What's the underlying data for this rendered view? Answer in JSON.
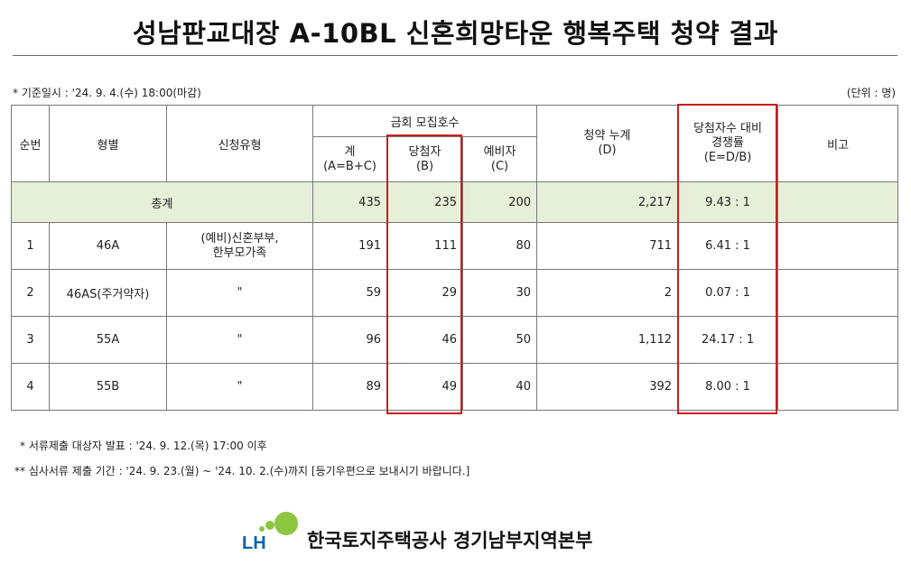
{
  "title": "성남판교대장 A-10BL 신혼희망타운 행복주택 청약 결과",
  "basis_date": "* 기준일시 : '24. 9. 4.(수) 18:00(마감)",
  "unit": "(단위 : 명)",
  "headers": {
    "seq": "순번",
    "type": "형별",
    "apply_type": "신청유형",
    "recruit_group": "금회 모집호수",
    "total": "계",
    "total_formula": "(A=B+C)",
    "winners": "당첨자",
    "winners_code": "(B)",
    "reserve": "예비자",
    "reserve_code": "(C)",
    "cumulative": "청약 누계",
    "cumulative_code": "(D)",
    "ratio_line1": "당첨자수 대비",
    "ratio_line2": "경쟁률",
    "ratio_formula": "(E=D/B)",
    "remarks": "비고"
  },
  "total_row": {
    "label": "총계",
    "total": "435",
    "winners": "235",
    "reserve": "200",
    "cumulative": "2,217",
    "ratio": "9.43 : 1"
  },
  "rows": [
    {
      "seq": "1",
      "type": "46A",
      "apply_line1": "(예비)신혼부부,",
      "apply_line2": "한부모가족",
      "total": "191",
      "winners": "111",
      "reserve": "80",
      "cumulative": "711",
      "ratio": "6.41 : 1",
      "remarks": ""
    },
    {
      "seq": "2",
      "type": "46AS(주거약자)",
      "apply_line1": "\"",
      "apply_line2": "",
      "total": "59",
      "winners": "29",
      "reserve": "30",
      "cumulative": "2",
      "ratio": "0.07 : 1",
      "remarks": ""
    },
    {
      "seq": "3",
      "type": "55A",
      "apply_line1": "\"",
      "apply_line2": "",
      "total": "96",
      "winners": "46",
      "reserve": "50",
      "cumulative": "1,112",
      "ratio": "24.17 : 1",
      "remarks": ""
    },
    {
      "seq": "4",
      "type": "55B",
      "apply_line1": "\"",
      "apply_line2": "",
      "total": "89",
      "winners": "49",
      "reserve": "40",
      "cumulative": "392",
      "ratio": "8.00 : 1",
      "remarks": ""
    }
  ],
  "notes": [
    "* 서류제출 대상자 발표 : '24. 9. 12.(목) 17:00 이후",
    "** 심사서류 제출 기간 : '24. 9. 23.(월) ~ '24. 10. 2.(수)까지 [등기우편으로 보내시기 바랍니다.]"
  ],
  "footer": {
    "logo_text": "LH",
    "org_name": "한국토지주택공사 경기남부지역본부"
  },
  "colors": {
    "highlight": "#c81e1e",
    "total_row_bg": "#e6f0d8",
    "logo_green": "#8cc63f",
    "logo_blue": "#0e63b0"
  }
}
